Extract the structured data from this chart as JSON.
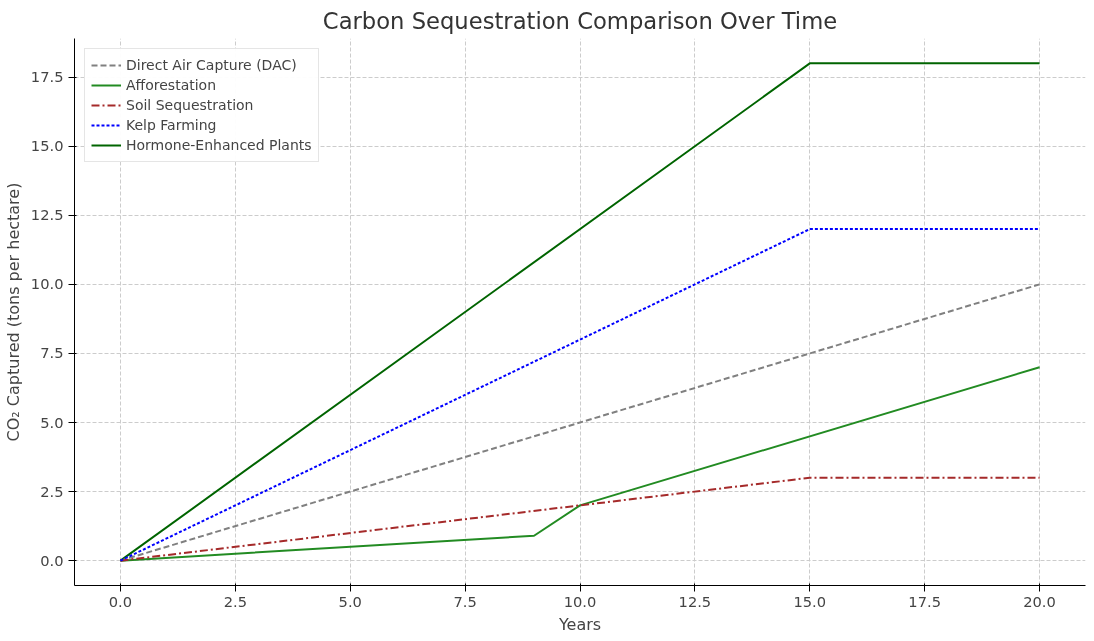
{
  "chart_data": {
    "type": "line",
    "title": "Carbon Sequestration Comparison Over Time",
    "xlabel": "Years",
    "ylabel": "CO₂ Captured (tons per hectare)",
    "xlim": [
      -1,
      21
    ],
    "xticks": [
      {
        "value": 0,
        "label": "0.0"
      },
      {
        "value": 2.5,
        "label": "2.5"
      },
      {
        "value": 5,
        "label": "5.0"
      },
      {
        "value": 7.5,
        "label": "7.5"
      },
      {
        "value": 10,
        "label": "10.0"
      },
      {
        "value": 12.5,
        "label": "12.5"
      },
      {
        "value": 15,
        "label": "15.0"
      },
      {
        "value": 17.5,
        "label": "17.5"
      },
      {
        "value": 20,
        "label": "20.0"
      }
    ],
    "ylim": [
      -0.9,
      18.9
    ],
    "yticks": [
      {
        "value": 0,
        "label": "0.0"
      },
      {
        "value": 2.5,
        "label": "2.5"
      },
      {
        "value": 5,
        "label": "5.0"
      },
      {
        "value": 7.5,
        "label": "7.5"
      },
      {
        "value": 10,
        "label": "10.0"
      },
      {
        "value": 12.5,
        "label": "12.5"
      },
      {
        "value": 15,
        "label": "15.0"
      },
      {
        "value": 17.5,
        "label": "17.5"
      }
    ],
    "grid": true,
    "legend": "top left",
    "marker": "none",
    "series": [
      {
        "name": "Direct Air Capture (DAC)",
        "color": "#808080",
        "line_style": "dashed",
        "x": [
          0,
          20
        ],
        "values": [
          0,
          10
        ]
      },
      {
        "name": "Afforestation",
        "color": "#228b22",
        "line_style": "solid",
        "x": [
          0,
          9,
          10,
          20
        ],
        "values": [
          0,
          0.9,
          2,
          7
        ]
      },
      {
        "name": "Soil Sequestration",
        "color": "#a52a2a",
        "line_style": "dashdot",
        "x": [
          0,
          10,
          15,
          20
        ],
        "values": [
          0,
          2,
          3,
          3
        ]
      },
      {
        "name": "Kelp Farming",
        "color": "#0000ff",
        "line_style": "dotted",
        "x": [
          0,
          15,
          20
        ],
        "values": [
          0,
          12,
          12
        ]
      },
      {
        "name": "Hormone-Enhanced Plants",
        "color": "#006400",
        "line_style": "solid",
        "x": [
          0,
          15,
          20
        ],
        "values": [
          0,
          18,
          18
        ]
      }
    ]
  }
}
